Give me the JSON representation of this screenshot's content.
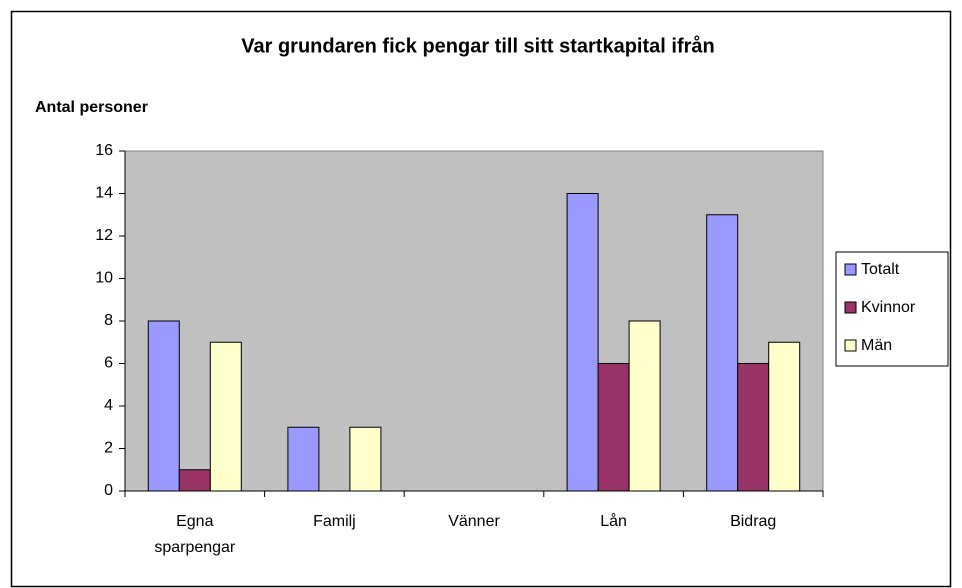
{
  "chart_data": {
    "type": "bar",
    "title": "Var grundaren fick pengar till sitt startkapital ifrån",
    "y_label": "Antal personer",
    "categories": [
      "Egna sparpengar",
      "Familj",
      "Vänner",
      "Lån",
      "Bidrag"
    ],
    "series": [
      {
        "name": "Totalt",
        "color": "#9999ff",
        "values": [
          8,
          3,
          0,
          14,
          13
        ]
      },
      {
        "name": "Kvinnor",
        "color": "#993366",
        "values": [
          1,
          0,
          0,
          6,
          6
        ]
      },
      {
        "name": "Män",
        "color": "#ffffcc",
        "values": [
          7,
          3,
          0,
          8,
          7
        ]
      }
    ],
    "ylim": [
      0,
      16
    ],
    "yticks": [
      0,
      2,
      4,
      6,
      8,
      10,
      12,
      14,
      16
    ],
    "grid": false,
    "legend": "right",
    "plot_background": "#c0c0c0"
  }
}
